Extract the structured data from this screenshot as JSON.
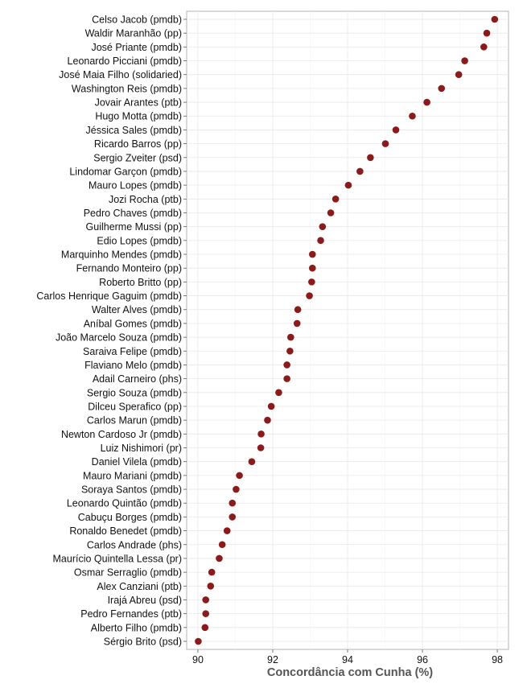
{
  "chart_data": {
    "type": "scatter",
    "xlabel": "Concordância com Cunha (%)",
    "ylabel": "",
    "title": "",
    "xlim": [
      89.7,
      98.3
    ],
    "xticks": [
      90,
      92,
      94,
      96,
      98
    ],
    "grid": true,
    "point_color": "#8B1A1A",
    "categories": [
      "Celso Jacob (pmdb)",
      "Waldir Maranhão (pp)",
      "José Priante (pmdb)",
      "Leonardo Picciani (pmdb)",
      "José Maia Filho (solidaried)",
      "Washington Reis (pmdb)",
      "Jovair Arantes (ptb)",
      "Hugo Motta (pmdb)",
      "Jéssica Sales (pmdb)",
      "Ricardo Barros (pp)",
      "Sergio Zveiter (psd)",
      "Lindomar Garçon (pmdb)",
      "Mauro Lopes (pmdb)",
      "Jozi Rocha (ptb)",
      "Pedro Chaves (pmdb)",
      "Guilherme Mussi (pp)",
      "Edio Lopes (pmdb)",
      "Marquinho Mendes (pmdb)",
      "Fernando Monteiro (pp)",
      "Roberto Britto (pp)",
      "Carlos Henrique Gaguim (pmdb)",
      "Walter Alves (pmdb)",
      "Aníbal Gomes (pmdb)",
      "João Marcelo Souza (pmdb)",
      "Saraiva Felipe (pmdb)",
      "Flaviano Melo (pmdb)",
      "Adail Carneiro (phs)",
      "Sergio Souza (pmdb)",
      "Dilceu Sperafico (pp)",
      "Carlos Marun (pmdb)",
      "Newton Cardoso Jr (pmdb)",
      "Luiz Nishimori (pr)",
      "Daniel Vilela (pmdb)",
      "Mauro Mariani (pmdb)",
      "Soraya Santos (pmdb)",
      "Leonardo Quintão (pmdb)",
      "Cabuçu Borges (pmdb)",
      "Ronaldo Benedet (pmdb)",
      "Carlos Andrade (phs)",
      "Maurício Quintella Lessa (pr)",
      "Osmar Serraglio (pmdb)",
      "Alex Canziani (ptb)",
      "Irajá Abreu (psd)",
      "Pedro Fernandes (ptb)",
      "Alberto Filho (pmdb)",
      "Sérgio Brito (psd)"
    ],
    "values": [
      97.93,
      97.72,
      97.64,
      97.13,
      96.97,
      96.51,
      96.12,
      95.73,
      95.29,
      95.01,
      94.61,
      94.33,
      94.02,
      93.68,
      93.55,
      93.33,
      93.28,
      93.06,
      93.06,
      93.04,
      92.98,
      92.67,
      92.65,
      92.48,
      92.46,
      92.38,
      92.38,
      92.16,
      91.96,
      91.86,
      91.69,
      91.68,
      91.44,
      91.11,
      91.02,
      90.92,
      90.92,
      90.78,
      90.65,
      90.57,
      90.37,
      90.34,
      90.21,
      90.21,
      90.19,
      90.01
    ]
  }
}
